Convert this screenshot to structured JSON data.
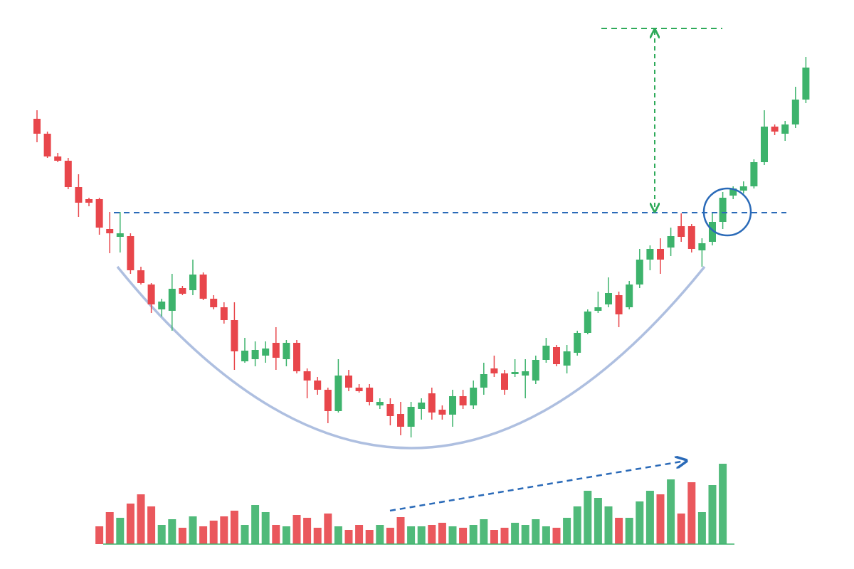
{
  "chart_data": {
    "type": "candlestick",
    "up_color": "#3db36c",
    "down_color": "#e8464b",
    "open": [
      633,
      612,
      580,
      574,
      537,
      520,
      520,
      478,
      467,
      468,
      420,
      400,
      365,
      363,
      395,
      392,
      414,
      380,
      368,
      350,
      292,
      295,
      300,
      318,
      295,
      318,
      278,
      265,
      252,
      222,
      272,
      255,
      255,
      230,
      232,
      218,
      200,
      225,
      247,
      224,
      217,
      243,
      230,
      255,
      282,
      275,
      274,
      272,
      265,
      294,
      312,
      286,
      304,
      332,
      363,
      372,
      385,
      368,
      400,
      435,
      450,
      452,
      482,
      482,
      448,
      460,
      488,
      525,
      532,
      538,
      572,
      622,
      612,
      625,
      660
    ],
    "high": [
      645,
      615,
      585,
      578,
      555,
      522,
      522,
      502,
      502,
      472,
      425,
      402,
      380,
      415,
      398,
      435,
      417,
      385,
      375,
      375,
      325,
      320,
      320,
      340,
      322,
      322,
      282,
      270,
      255,
      295,
      280,
      260,
      260,
      240,
      240,
      235,
      235,
      240,
      255,
      230,
      252,
      252,
      265,
      290,
      300,
      280,
      295,
      295,
      300,
      325,
      315,
      315,
      335,
      365,
      390,
      410,
      390,
      405,
      450,
      455,
      465,
      480,
      500,
      485,
      465,
      500,
      530,
      538,
      545,
      576,
      645,
      625,
      630,
      678,
      720
    ],
    "low": [
      600,
      578,
      572,
      534,
      495,
      510,
      470,
      444,
      445,
      415,
      400,
      360,
      355,
      335,
      385,
      385,
      378,
      365,
      345,
      280,
      290,
      285,
      290,
      280,
      285,
      275,
      240,
      245,
      205,
      220,
      250,
      248,
      230,
      225,
      202,
      188,
      185,
      210,
      210,
      210,
      200,
      225,
      225,
      245,
      270,
      245,
      270,
      240,
      260,
      290,
      285,
      275,
      300,
      330,
      360,
      368,
      340,
      365,
      395,
      420,
      415,
      440,
      460,
      445,
      425,
      455,
      478,
      520,
      528,
      535,
      568,
      610,
      602,
      620,
      655
    ],
    "close": [
      612,
      580,
      574,
      537,
      515,
      515,
      480,
      472,
      472,
      420,
      402,
      372,
      376,
      394,
      387,
      414,
      380,
      368,
      350,
      306,
      307,
      308,
      310,
      297,
      318,
      278,
      265,
      252,
      222,
      272,
      255,
      250,
      235,
      235,
      215,
      200,
      228,
      234,
      220,
      217,
      243,
      230,
      255,
      274,
      275,
      252,
      277,
      278,
      294,
      314,
      288,
      306,
      332,
      362,
      368,
      388,
      358,
      400,
      435,
      450,
      435,
      468,
      467,
      450,
      458,
      488,
      522,
      535,
      538,
      572,
      622,
      615,
      625,
      660,
      705
    ],
    "volume": [
      null,
      null,
      null,
      null,
      null,
      null,
      25,
      45,
      37,
      57,
      70,
      53,
      27,
      35,
      23,
      39,
      25,
      33,
      39,
      47,
      27,
      55,
      45,
      27,
      25,
      41,
      37,
      23,
      43,
      25,
      20,
      27,
      20,
      27,
      23,
      38,
      25,
      25,
      27,
      30,
      25,
      23,
      27,
      35,
      20,
      23,
      30,
      27,
      35,
      25,
      23,
      37,
      53,
      75,
      65,
      53,
      37,
      37,
      60,
      75,
      70,
      91,
      43,
      87,
      45,
      83,
      113,
      null,
      null,
      null,
      null,
      null,
      null,
      null,
      null
    ]
  }
}
